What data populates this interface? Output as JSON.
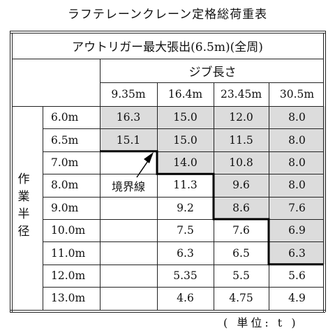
{
  "title": "ラフテレーンクレーン定格総荷重表",
  "header": {
    "outrigger": "アウトリガー最大張出(6.5m)(全周)",
    "boom_length_label": "ジブ長さ",
    "boom_lengths": [
      "9.35m",
      "16.4m",
      "23.45m",
      "30.5m"
    ]
  },
  "radius_label": "作業半径",
  "boundary_label": "境界線",
  "unit_note": "( 単位: t )",
  "rows": [
    {
      "radius": "6.0m",
      "values": [
        "16.3",
        "15.0",
        "12.0",
        "8.0"
      ]
    },
    {
      "radius": "6.5m",
      "values": [
        "15.1",
        "15.0",
        "11.5",
        "8.0"
      ]
    },
    {
      "radius": "7.0m",
      "values": [
        "",
        "14.0",
        "10.8",
        "8.0"
      ]
    },
    {
      "radius": "8.0m",
      "values": [
        "",
        "11.3",
        "9.6",
        "8.0"
      ]
    },
    {
      "radius": "9.0m",
      "values": [
        "",
        "9.2",
        "8.6",
        "7.6"
      ]
    },
    {
      "radius": "10.0m",
      "values": [
        "",
        "7.5",
        "7.6",
        "6.9"
      ]
    },
    {
      "radius": "11.0m",
      "values": [
        "",
        "6.3",
        "6.5",
        "6.3"
      ]
    },
    {
      "radius": "12.0m",
      "values": [
        "",
        "5.35",
        "5.5",
        "5.6"
      ]
    },
    {
      "radius": "13.0m",
      "values": [
        "",
        "4.6",
        "4.75",
        "4.9"
      ]
    }
  ],
  "shaded": [
    [
      true,
      true,
      true,
      true
    ],
    [
      true,
      true,
      true,
      true
    ],
    [
      false,
      true,
      true,
      true
    ],
    [
      false,
      false,
      true,
      true
    ],
    [
      false,
      false,
      true,
      true
    ],
    [
      false,
      false,
      false,
      true
    ],
    [
      false,
      false,
      false,
      true
    ],
    [
      false,
      false,
      false,
      false
    ],
    [
      false,
      false,
      false,
      false
    ]
  ]
}
